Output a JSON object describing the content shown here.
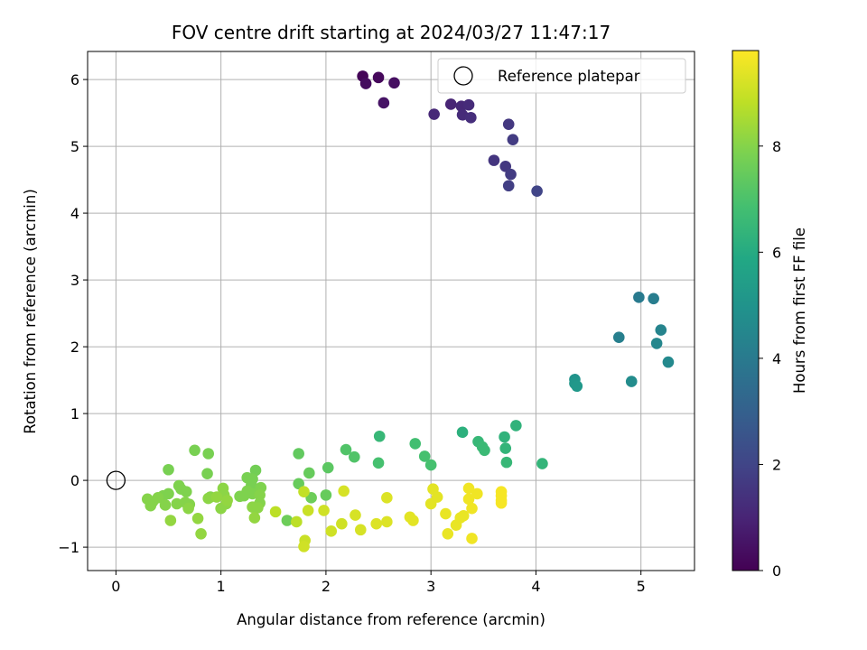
{
  "chart_data": {
    "type": "scatter",
    "title": "FOV centre drift starting at 2024/03/27 11:47:17",
    "xlabel": "Angular distance from reference (arcmin)",
    "ylabel": "Rotation from reference (arcmin)",
    "xlim": [
      -0.27,
      5.51
    ],
    "ylim": [
      -1.35,
      6.42
    ],
    "xticks": [
      0,
      1,
      2,
      3,
      4,
      5
    ],
    "yticks": [
      -1,
      0,
      1,
      2,
      3,
      4,
      5,
      6
    ],
    "grid": true,
    "legend": {
      "position": "top-right",
      "entries": [
        {
          "label": "Reference platepar",
          "marker": "open-circle"
        }
      ]
    },
    "reference_point": {
      "x": 0,
      "y": 0
    },
    "colorbar": {
      "label": "Hours from first FF file",
      "colormap": "viridis",
      "range": [
        0,
        9.8
      ],
      "ticks": [
        0,
        2,
        4,
        6,
        8
      ]
    },
    "points": [
      {
        "x": 2.35,
        "y": 6.05,
        "c": 0.1
      },
      {
        "x": 2.5,
        "y": 6.03,
        "c": 0.2
      },
      {
        "x": 2.38,
        "y": 5.94,
        "c": 0.3
      },
      {
        "x": 2.65,
        "y": 5.95,
        "c": 0.4
      },
      {
        "x": 2.55,
        "y": 5.65,
        "c": 0.5
      },
      {
        "x": 3.19,
        "y": 5.63,
        "c": 1.0
      },
      {
        "x": 3.29,
        "y": 5.6,
        "c": 1.1
      },
      {
        "x": 3.36,
        "y": 5.62,
        "c": 1.2
      },
      {
        "x": 3.03,
        "y": 5.48,
        "c": 1.1
      },
      {
        "x": 3.3,
        "y": 5.47,
        "c": 1.2
      },
      {
        "x": 3.38,
        "y": 5.43,
        "c": 1.3
      },
      {
        "x": 3.74,
        "y": 5.33,
        "c": 1.6
      },
      {
        "x": 3.78,
        "y": 5.1,
        "c": 1.7
      },
      {
        "x": 3.6,
        "y": 4.79,
        "c": 1.5
      },
      {
        "x": 3.71,
        "y": 4.7,
        "c": 1.6
      },
      {
        "x": 3.76,
        "y": 4.58,
        "c": 1.7
      },
      {
        "x": 3.74,
        "y": 4.41,
        "c": 1.8
      },
      {
        "x": 4.01,
        "y": 4.33,
        "c": 2.0
      },
      {
        "x": 4.98,
        "y": 2.74,
        "c": 4.0
      },
      {
        "x": 5.12,
        "y": 2.72,
        "c": 4.1
      },
      {
        "x": 5.19,
        "y": 2.25,
        "c": 4.4
      },
      {
        "x": 4.79,
        "y": 2.14,
        "c": 4.2
      },
      {
        "x": 5.15,
        "y": 2.05,
        "c": 4.5
      },
      {
        "x": 5.26,
        "y": 1.77,
        "c": 4.6
      },
      {
        "x": 4.91,
        "y": 1.48,
        "c": 4.7
      },
      {
        "x": 4.37,
        "y": 1.51,
        "c": 5.0
      },
      {
        "x": 4.37,
        "y": 1.45,
        "c": 5.1
      },
      {
        "x": 4.39,
        "y": 1.41,
        "c": 5.2
      },
      {
        "x": 3.3,
        "y": 0.72,
        "c": 6.2
      },
      {
        "x": 3.81,
        "y": 0.82,
        "c": 6.3
      },
      {
        "x": 3.7,
        "y": 0.65,
        "c": 6.3
      },
      {
        "x": 2.51,
        "y": 0.66,
        "c": 6.5
      },
      {
        "x": 3.45,
        "y": 0.58,
        "c": 6.5
      },
      {
        "x": 3.49,
        "y": 0.5,
        "c": 6.6
      },
      {
        "x": 3.51,
        "y": 0.45,
        "c": 6.6
      },
      {
        "x": 3.71,
        "y": 0.48,
        "c": 6.4
      },
      {
        "x": 2.85,
        "y": 0.55,
        "c": 6.8
      },
      {
        "x": 2.94,
        "y": 0.36,
        "c": 6.9
      },
      {
        "x": 3.0,
        "y": 0.23,
        "c": 6.9
      },
      {
        "x": 3.72,
        "y": 0.27,
        "c": 6.5
      },
      {
        "x": 4.06,
        "y": 0.25,
        "c": 6.4
      },
      {
        "x": 2.5,
        "y": 0.26,
        "c": 6.9
      },
      {
        "x": 2.19,
        "y": 0.46,
        "c": 7.1
      },
      {
        "x": 2.27,
        "y": 0.35,
        "c": 7.1
      },
      {
        "x": 2.02,
        "y": 0.19,
        "c": 7.3
      },
      {
        "x": 1.74,
        "y": 0.4,
        "c": 7.4
      },
      {
        "x": 1.84,
        "y": 0.11,
        "c": 7.5
      },
      {
        "x": 1.74,
        "y": -0.05,
        "c": 7.5
      },
      {
        "x": 2.0,
        "y": -0.22,
        "c": 7.5
      },
      {
        "x": 1.86,
        "y": -0.26,
        "c": 7.6
      },
      {
        "x": 1.63,
        "y": -0.6,
        "c": 7.6
      },
      {
        "x": 1.33,
        "y": 0.15,
        "c": 7.7
      },
      {
        "x": 1.25,
        "y": 0.04,
        "c": 7.8
      },
      {
        "x": 1.3,
        "y": 0.02,
        "c": 7.8
      },
      {
        "x": 1.29,
        "y": -0.07,
        "c": 7.8
      },
      {
        "x": 1.25,
        "y": -0.16,
        "c": 7.9
      },
      {
        "x": 1.22,
        "y": -0.23,
        "c": 7.9
      },
      {
        "x": 1.3,
        "y": -0.2,
        "c": 7.9
      },
      {
        "x": 1.18,
        "y": -0.24,
        "c": 7.9
      },
      {
        "x": 1.38,
        "y": -0.11,
        "c": 7.9
      },
      {
        "x": 1.37,
        "y": -0.22,
        "c": 8.0
      },
      {
        "x": 1.37,
        "y": -0.34,
        "c": 8.0
      },
      {
        "x": 1.3,
        "y": -0.4,
        "c": 8.1
      },
      {
        "x": 1.35,
        "y": -0.41,
        "c": 8.1
      },
      {
        "x": 1.32,
        "y": -0.56,
        "c": 8.2
      },
      {
        "x": 0.75,
        "y": 0.45,
        "c": 7.8
      },
      {
        "x": 0.88,
        "y": 0.4,
        "c": 7.8
      },
      {
        "x": 0.87,
        "y": 0.1,
        "c": 7.8
      },
      {
        "x": 0.5,
        "y": 0.16,
        "c": 7.8
      },
      {
        "x": 0.6,
        "y": -0.08,
        "c": 7.9
      },
      {
        "x": 0.62,
        "y": -0.13,
        "c": 7.9
      },
      {
        "x": 0.67,
        "y": -0.17,
        "c": 7.9
      },
      {
        "x": 0.5,
        "y": -0.2,
        "c": 7.9
      },
      {
        "x": 0.45,
        "y": -0.23,
        "c": 7.9
      },
      {
        "x": 0.4,
        "y": -0.26,
        "c": 8.0
      },
      {
        "x": 0.3,
        "y": -0.28,
        "c": 8.0
      },
      {
        "x": 0.35,
        "y": -0.32,
        "c": 8.0
      },
      {
        "x": 0.33,
        "y": -0.38,
        "c": 8.0
      },
      {
        "x": 0.47,
        "y": -0.37,
        "c": 8.0
      },
      {
        "x": 0.58,
        "y": -0.35,
        "c": 8.0
      },
      {
        "x": 0.66,
        "y": -0.33,
        "c": 8.0
      },
      {
        "x": 0.7,
        "y": -0.36,
        "c": 8.0
      },
      {
        "x": 0.69,
        "y": -0.42,
        "c": 8.1
      },
      {
        "x": 0.9,
        "y": -0.25,
        "c": 8.0
      },
      {
        "x": 0.88,
        "y": -0.27,
        "c": 8.1
      },
      {
        "x": 1.02,
        "y": -0.12,
        "c": 8.1
      },
      {
        "x": 1.03,
        "y": -0.22,
        "c": 8.1
      },
      {
        "x": 1.05,
        "y": -0.35,
        "c": 8.1
      },
      {
        "x": 1.0,
        "y": -0.42,
        "c": 8.1
      },
      {
        "x": 0.96,
        "y": -0.25,
        "c": 8.2
      },
      {
        "x": 1.06,
        "y": -0.3,
        "c": 8.2
      },
      {
        "x": 0.52,
        "y": -0.6,
        "c": 8.2
      },
      {
        "x": 0.78,
        "y": -0.57,
        "c": 8.2
      },
      {
        "x": 0.81,
        "y": -0.8,
        "c": 8.2
      },
      {
        "x": 1.52,
        "y": -0.47,
        "c": 8.8
      },
      {
        "x": 1.72,
        "y": -0.62,
        "c": 8.8
      },
      {
        "x": 1.79,
        "y": -0.17,
        "c": 8.9
      },
      {
        "x": 1.83,
        "y": -0.45,
        "c": 9.0
      },
      {
        "x": 1.8,
        "y": -0.9,
        "c": 9.0
      },
      {
        "x": 1.79,
        "y": -0.99,
        "c": 9.1
      },
      {
        "x": 1.98,
        "y": -0.45,
        "c": 9.1
      },
      {
        "x": 2.05,
        "y": -0.76,
        "c": 9.1
      },
      {
        "x": 2.15,
        "y": -0.65,
        "c": 9.1
      },
      {
        "x": 2.17,
        "y": -0.16,
        "c": 9.2
      },
      {
        "x": 2.28,
        "y": -0.52,
        "c": 9.2
      },
      {
        "x": 2.33,
        "y": -0.74,
        "c": 9.2
      },
      {
        "x": 2.48,
        "y": -0.65,
        "c": 9.3
      },
      {
        "x": 2.58,
        "y": -0.26,
        "c": 9.3
      },
      {
        "x": 2.58,
        "y": -0.62,
        "c": 9.3
      },
      {
        "x": 2.8,
        "y": -0.55,
        "c": 9.4
      },
      {
        "x": 2.83,
        "y": -0.6,
        "c": 9.4
      },
      {
        "x": 3.02,
        "y": -0.13,
        "c": 9.4
      },
      {
        "x": 3.06,
        "y": -0.25,
        "c": 9.4
      },
      {
        "x": 3.0,
        "y": -0.35,
        "c": 9.4
      },
      {
        "x": 3.14,
        "y": -0.5,
        "c": 9.5
      },
      {
        "x": 3.16,
        "y": -0.8,
        "c": 9.5
      },
      {
        "x": 3.24,
        "y": -0.67,
        "c": 9.5
      },
      {
        "x": 3.28,
        "y": -0.56,
        "c": 9.5
      },
      {
        "x": 3.31,
        "y": -0.53,
        "c": 9.5
      },
      {
        "x": 3.36,
        "y": -0.12,
        "c": 9.6
      },
      {
        "x": 3.36,
        "y": -0.28,
        "c": 9.6
      },
      {
        "x": 3.39,
        "y": -0.42,
        "c": 9.6
      },
      {
        "x": 3.44,
        "y": -0.2,
        "c": 9.6
      },
      {
        "x": 3.39,
        "y": -0.87,
        "c": 9.6
      },
      {
        "x": 3.67,
        "y": -0.17,
        "c": 9.7
      },
      {
        "x": 3.67,
        "y": -0.23,
        "c": 9.7
      },
      {
        "x": 3.67,
        "y": -0.3,
        "c": 9.7
      },
      {
        "x": 3.67,
        "y": -0.34,
        "c": 9.7
      }
    ]
  }
}
